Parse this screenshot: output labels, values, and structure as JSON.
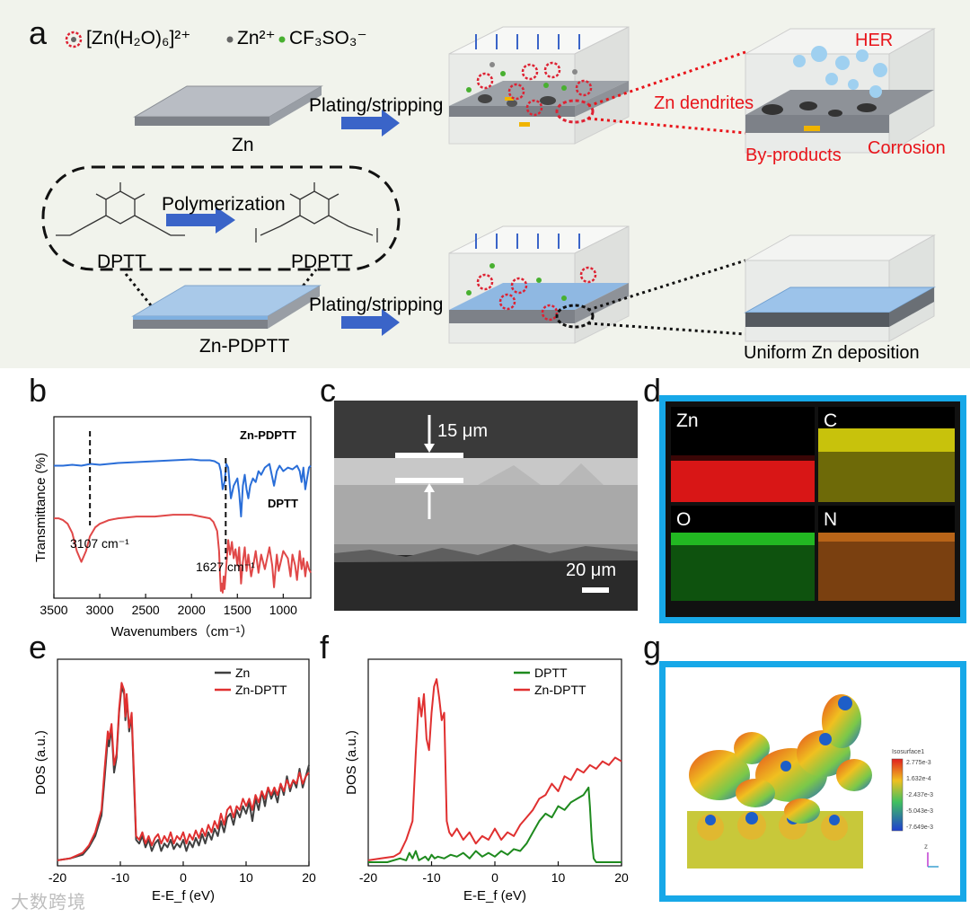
{
  "panel_labels": {
    "a": "a",
    "b": "b",
    "c": "c",
    "d": "d",
    "e": "e",
    "f": "f",
    "g": "g"
  },
  "panel_a": {
    "legend": {
      "ion1": "[Zn(H₂O)₆]²⁺",
      "ion2": "Zn²⁺",
      "ion3": "CF₃SO₃⁻"
    },
    "zn_label": "Zn",
    "process_top": "Plating/stripping",
    "process_bottom": "Plating/stripping",
    "polymerization": "Polymerization",
    "monomer": "DPTT",
    "polymer": "PDPTT",
    "coated_label": "Zn-PDPTT",
    "hazards": {
      "her": "HER",
      "dendrites": "Zn dendrites",
      "byproducts": "By-products",
      "corrosion": "Corrosion"
    },
    "uniform": "Uniform Zn deposition",
    "colors": {
      "red": "#e8141a",
      "arrow": "#3a64c8",
      "blue_layer": "#a9c9e9"
    }
  },
  "panel_c": {
    "thickness": "15 μm",
    "scale": "20 μm"
  },
  "panel_d": {
    "maps": [
      {
        "el": "Zn",
        "color": "#ff1f1f"
      },
      {
        "el": "C",
        "color": "#f2ec10"
      },
      {
        "el": "O",
        "color": "#2ad12a"
      },
      {
        "el": "N",
        "color": "#e98a2a"
      }
    ]
  },
  "panel_g": {
    "legend_title": "Isosurface1",
    "legend_values": [
      "2.775e-3",
      "1.632e-4",
      "-2.437e-3",
      "-5.043e-3",
      "-7.649e-3"
    ],
    "axis": "z"
  },
  "chart_data": [
    {
      "panel": "b",
      "type": "line",
      "title": "",
      "xlabel": "Wavenumbers（cm⁻¹）",
      "ylabel": "Transmittance (%)",
      "xlim": [
        3500,
        700
      ],
      "xticks": [
        3500,
        3000,
        2500,
        2000,
        1500,
        1000
      ],
      "series": [
        {
          "name": "Zn-PDPTT",
          "color": "#2a6ed8",
          "x": [
            3500,
            3400,
            3300,
            3200,
            3150,
            3100,
            3000,
            2900,
            2800,
            2600,
            2400,
            2200,
            2000,
            1900,
            1800,
            1750,
            1700,
            1680,
            1660,
            1640,
            1620,
            1600,
            1570,
            1540,
            1500,
            1480,
            1460,
            1440,
            1420,
            1400,
            1380,
            1360,
            1330,
            1300,
            1270,
            1240,
            1200,
            1150,
            1100,
            1070,
            1040,
            1000,
            950,
            900,
            850,
            820,
            800,
            780,
            760,
            740,
            720,
            700
          ],
          "y": [
            0.73,
            0.73,
            0.735,
            0.73,
            0.735,
            0.74,
            0.735,
            0.74,
            0.745,
            0.75,
            0.755,
            0.76,
            0.765,
            0.76,
            0.76,
            0.755,
            0.74,
            0.7,
            0.6,
            0.64,
            0.74,
            0.72,
            0.55,
            0.62,
            0.66,
            0.58,
            0.45,
            0.62,
            0.68,
            0.6,
            0.55,
            0.62,
            0.66,
            0.64,
            0.7,
            0.68,
            0.72,
            0.74,
            0.62,
            0.7,
            0.73,
            0.7,
            0.72,
            0.71,
            0.73,
            0.7,
            0.64,
            0.72,
            0.6,
            0.66,
            0.72,
            0.73
          ]
        },
        {
          "name": "DPTT",
          "color": "#e04848",
          "x": [
            3500,
            3450,
            3400,
            3350,
            3300,
            3250,
            3200,
            3150,
            3107,
            3050,
            3000,
            2950,
            2900,
            2800,
            2600,
            2400,
            2200,
            2000,
            1900,
            1800,
            1760,
            1720,
            1700,
            1690,
            1680,
            1670,
            1660,
            1650,
            1640,
            1620,
            1600,
            1580,
            1560,
            1540,
            1520,
            1500,
            1480,
            1460,
            1440,
            1420,
            1400,
            1380,
            1350,
            1320,
            1300,
            1270,
            1240,
            1200,
            1150,
            1120,
            1100,
            1070,
            1050,
            1000,
            950,
            920,
            900,
            870,
            850,
            820,
            800,
            780,
            760,
            740,
            720,
            700
          ],
          "y": [
            0.44,
            0.44,
            0.43,
            0.41,
            0.36,
            0.26,
            0.2,
            0.26,
            0.34,
            0.39,
            0.41,
            0.42,
            0.43,
            0.44,
            0.45,
            0.45,
            0.46,
            0.46,
            0.45,
            0.44,
            0.42,
            0.37,
            0.26,
            0.14,
            0.04,
            0.08,
            0.03,
            0.12,
            0.05,
            0.18,
            0.32,
            0.24,
            0.31,
            0.22,
            0.27,
            0.18,
            0.28,
            0.08,
            0.2,
            0.28,
            0.15,
            0.24,
            0.12,
            0.2,
            0.26,
            0.14,
            0.24,
            0.16,
            0.28,
            0.18,
            0.06,
            0.24,
            0.15,
            0.26,
            0.22,
            0.12,
            0.24,
            0.18,
            0.1,
            0.26,
            0.16,
            0.22,
            0.12,
            0.2,
            0.16,
            0.14
          ]
        }
      ],
      "series_labels": [
        "Zn-PDPTT",
        "DPTT"
      ],
      "annotations": [
        {
          "x": 3107,
          "text": "3107 cm⁻¹"
        },
        {
          "x": 1627,
          "text": "1627 cm⁻¹"
        }
      ]
    },
    {
      "panel": "e",
      "type": "line",
      "title": "",
      "xlabel": "E-E_f (eV)",
      "ylabel": "DOS (a.u.)",
      "xlim": [
        -20,
        20
      ],
      "ylim": [
        0,
        1
      ],
      "xticks": [
        -20,
        -10,
        0,
        10,
        20
      ],
      "series": [
        {
          "name": "Zn",
          "color": "#404040",
          "x": [
            -20,
            -18,
            -16,
            -15,
            -14,
            -13,
            -12.5,
            -12,
            -11.8,
            -11.4,
            -11,
            -10.6,
            -10.2,
            -9.8,
            -9.4,
            -9.2,
            -9,
            -8.6,
            -8.2,
            -7.8,
            -7.5,
            -7,
            -6.5,
            -6,
            -5.5,
            -5,
            -4.5,
            -4,
            -3.5,
            -3,
            -2.5,
            -2,
            -1.5,
            -1,
            -0.5,
            0,
            0.5,
            1,
            1.5,
            2,
            2.5,
            3,
            3.5,
            4,
            4.5,
            5,
            5.5,
            6,
            6.5,
            7,
            7.5,
            8,
            8.5,
            9,
            9.5,
            10,
            10.5,
            11,
            11.5,
            12,
            12.5,
            13,
            13.5,
            14,
            14.5,
            15,
            15.5,
            16,
            16.5,
            17,
            17.5,
            18,
            18.5,
            19,
            19.5,
            20
          ],
          "y": [
            0.01,
            0.02,
            0.04,
            0.08,
            0.14,
            0.25,
            0.45,
            0.66,
            0.62,
            0.72,
            0.48,
            0.56,
            0.8,
            0.94,
            0.9,
            0.76,
            0.88,
            0.7,
            0.78,
            0.4,
            0.12,
            0.1,
            0.14,
            0.08,
            0.12,
            0.06,
            0.1,
            0.12,
            0.06,
            0.1,
            0.08,
            0.12,
            0.07,
            0.1,
            0.08,
            0.12,
            0.06,
            0.11,
            0.08,
            0.13,
            0.09,
            0.15,
            0.1,
            0.16,
            0.12,
            0.18,
            0.14,
            0.22,
            0.16,
            0.24,
            0.26,
            0.2,
            0.28,
            0.24,
            0.3,
            0.26,
            0.32,
            0.22,
            0.34,
            0.28,
            0.38,
            0.3,
            0.4,
            0.34,
            0.38,
            0.32,
            0.42,
            0.36,
            0.46,
            0.38,
            0.44,
            0.4,
            0.5,
            0.4,
            0.46,
            0.52
          ]
        },
        {
          "name": "Zn-DPTT",
          "color": "#e03030",
          "x": [
            -20,
            -18,
            -16,
            -15,
            -14,
            -13,
            -12.5,
            -12,
            -11.8,
            -11.4,
            -11,
            -10.6,
            -10.2,
            -9.8,
            -9.4,
            -9.2,
            -9,
            -8.6,
            -8.2,
            -7.8,
            -7.5,
            -7,
            -6.5,
            -6,
            -5.5,
            -5,
            -4.5,
            -4,
            -3.5,
            -3,
            -2.5,
            -2,
            -1.5,
            -1,
            -0.5,
            0,
            0.5,
            1,
            1.5,
            2,
            2.5,
            3,
            3.5,
            4,
            4.5,
            5,
            5.5,
            6,
            6.5,
            7,
            7.5,
            8,
            8.5,
            9,
            9.5,
            10,
            10.5,
            11,
            11.5,
            12,
            12.5,
            13,
            13.5,
            14,
            14.5,
            15,
            15.5,
            16,
            16.5,
            17,
            17.5,
            18,
            18.5,
            19,
            19.5,
            20
          ],
          "y": [
            0.01,
            0.02,
            0.05,
            0.09,
            0.16,
            0.28,
            0.5,
            0.7,
            0.66,
            0.74,
            0.52,
            0.58,
            0.82,
            0.96,
            0.92,
            0.78,
            0.9,
            0.72,
            0.8,
            0.44,
            0.14,
            0.12,
            0.16,
            0.1,
            0.14,
            0.09,
            0.13,
            0.15,
            0.1,
            0.14,
            0.11,
            0.16,
            0.1,
            0.14,
            0.12,
            0.16,
            0.1,
            0.15,
            0.12,
            0.17,
            0.13,
            0.18,
            0.14,
            0.2,
            0.16,
            0.22,
            0.18,
            0.26,
            0.2,
            0.28,
            0.3,
            0.24,
            0.3,
            0.28,
            0.34,
            0.3,
            0.34,
            0.28,
            0.36,
            0.32,
            0.38,
            0.34,
            0.4,
            0.36,
            0.4,
            0.36,
            0.42,
            0.38,
            0.44,
            0.4,
            0.44,
            0.42,
            0.48,
            0.42,
            0.46,
            0.48
          ]
        }
      ]
    },
    {
      "panel": "f",
      "type": "line",
      "title": "",
      "xlabel": "E-E_f (eV)",
      "ylabel": "DOS (a.u.)",
      "xlim": [
        -20,
        20
      ],
      "ylim": [
        0,
        1
      ],
      "xticks": [
        -20,
        -10,
        0,
        10,
        20
      ],
      "series": [
        {
          "name": "DPTT",
          "color": "#1e8a1e",
          "x": [
            -20,
            -17,
            -15,
            -14,
            -13.5,
            -13,
            -12.5,
            -12,
            -11,
            -10.5,
            -10,
            -9.5,
            -9,
            -8,
            -7,
            -6,
            -5,
            -4,
            -3,
            -2,
            -1,
            0,
            1,
            2,
            3,
            4,
            5,
            6,
            7,
            8,
            9,
            10,
            11,
            12,
            13,
            14,
            14.8,
            15,
            15.3,
            15.6,
            16,
            18,
            20
          ],
          "y": [
            0,
            0,
            0.02,
            0.01,
            0.05,
            0.02,
            0.06,
            0.01,
            0.03,
            0.01,
            0.04,
            0.02,
            0.03,
            0.02,
            0.04,
            0.03,
            0.05,
            0.02,
            0.06,
            0.03,
            0.05,
            0.03,
            0.06,
            0.04,
            0.07,
            0.06,
            0.1,
            0.16,
            0.22,
            0.26,
            0.24,
            0.3,
            0.28,
            0.32,
            0.34,
            0.36,
            0.4,
            0.3,
            0.12,
            0.02,
            0,
            0,
            0
          ]
        },
        {
          "name": "Zn-DPTT",
          "color": "#e03030",
          "x": [
            -20,
            -18,
            -16,
            -15,
            -14,
            -13,
            -12.5,
            -12,
            -11.6,
            -11.2,
            -10.8,
            -10.4,
            -10,
            -9.6,
            -9.2,
            -8.8,
            -8.4,
            -8,
            -7.6,
            -7.2,
            -6.8,
            -6,
            -5,
            -4,
            -3,
            -2,
            -1,
            0,
            1,
            2,
            3,
            4,
            5,
            6,
            7,
            8,
            9,
            10,
            11,
            12,
            13,
            14,
            15,
            16,
            17,
            18,
            19,
            20
          ],
          "y": [
            0.01,
            0.02,
            0.03,
            0.05,
            0.12,
            0.22,
            0.58,
            0.88,
            0.78,
            0.9,
            0.66,
            0.6,
            0.8,
            0.94,
            0.98,
            0.88,
            0.76,
            0.8,
            0.22,
            0.16,
            0.14,
            0.18,
            0.12,
            0.16,
            0.1,
            0.14,
            0.12,
            0.18,
            0.12,
            0.16,
            0.14,
            0.2,
            0.24,
            0.28,
            0.34,
            0.36,
            0.42,
            0.38,
            0.46,
            0.44,
            0.5,
            0.48,
            0.52,
            0.5,
            0.54,
            0.52,
            0.56,
            0.54
          ]
        }
      ]
    }
  ],
  "watermark": "大数跨境"
}
